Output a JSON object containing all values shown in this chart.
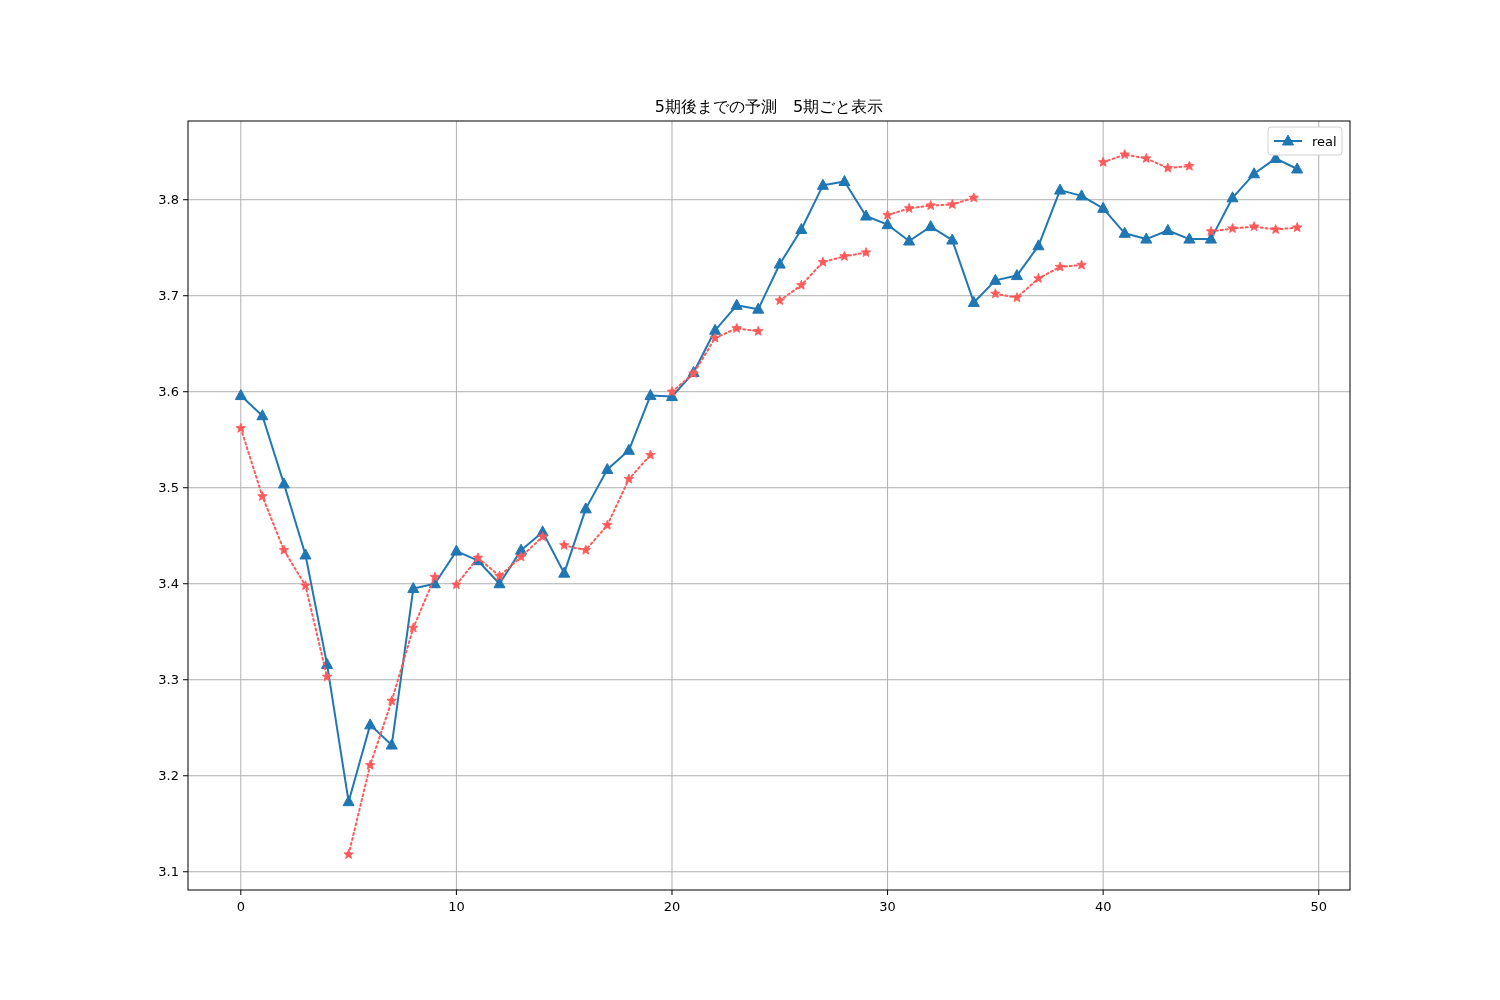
{
  "chart_data": {
    "type": "line",
    "title": "5期後までの予測　5期ごと表示",
    "x": [
      0,
      1,
      2,
      3,
      4,
      5,
      6,
      7,
      8,
      9,
      10,
      11,
      12,
      13,
      14,
      15,
      16,
      17,
      18,
      19,
      20,
      21,
      22,
      23,
      24,
      25,
      26,
      27,
      28,
      29,
      30,
      31,
      32,
      33,
      34,
      35,
      36,
      37,
      38,
      39,
      40,
      41,
      42,
      43,
      44,
      45,
      46,
      47,
      48,
      49
    ],
    "xlim": [
      -2.45,
      51.45
    ],
    "ylim": [
      3.081,
      3.882
    ],
    "xticks": [
      0,
      10,
      20,
      30,
      40,
      50
    ],
    "yticks": [
      3.1,
      3.2,
      3.3,
      3.4,
      3.5,
      3.6,
      3.7,
      3.8
    ],
    "grid": true,
    "legend": "top right",
    "series": [
      {
        "name": "real",
        "color": "#1f77b4",
        "marker": "triangle",
        "line_style": "solid",
        "values": [
          3.596,
          3.575,
          3.504,
          3.43,
          3.316,
          3.173,
          3.253,
          3.232,
          3.395,
          3.4,
          3.434,
          3.424,
          3.4,
          3.435,
          3.454,
          3.411,
          3.478,
          3.519,
          3.539,
          3.596,
          3.595,
          3.62,
          3.664,
          3.69,
          3.686,
          3.733,
          3.769,
          3.815,
          3.819,
          3.783,
          3.774,
          3.757,
          3.772,
          3.758,
          3.693,
          3.716,
          3.721,
          3.752,
          3.81,
          3.804,
          3.791,
          3.765,
          3.759,
          3.768,
          3.759,
          3.759,
          3.802,
          3.827,
          3.843,
          3.832
        ]
      },
      {
        "color": "#ff5a5a",
        "marker": "star",
        "line_style": "dotted",
        "x": [
          0,
          1,
          2,
          3,
          4
        ],
        "values": [
          3.562,
          3.491,
          3.435,
          3.398,
          3.303
        ]
      },
      {
        "color": "#ff5a5a",
        "marker": "star",
        "line_style": "dotted",
        "x": [
          5,
          6,
          7,
          8,
          9
        ],
        "values": [
          3.118,
          3.211,
          3.278,
          3.354,
          3.407
        ]
      },
      {
        "color": "#ff5a5a",
        "marker": "star",
        "line_style": "dotted",
        "x": [
          10,
          11,
          12,
          13,
          14
        ],
        "values": [
          3.399,
          3.427,
          3.408,
          3.428,
          3.449
        ]
      },
      {
        "color": "#ff5a5a",
        "marker": "star",
        "line_style": "dotted",
        "x": [
          15,
          16,
          17,
          18,
          19
        ],
        "values": [
          3.44,
          3.435,
          3.461,
          3.509,
          3.534
        ]
      },
      {
        "color": "#ff5a5a",
        "marker": "star",
        "line_style": "dotted",
        "x": [
          20,
          21,
          22,
          23,
          24
        ],
        "values": [
          3.6,
          3.619,
          3.656,
          3.666,
          3.663
        ]
      },
      {
        "color": "#ff5a5a",
        "marker": "star",
        "line_style": "dotted",
        "x": [
          25,
          26,
          27,
          28,
          29
        ],
        "values": [
          3.695,
          3.711,
          3.735,
          3.741,
          3.745
        ]
      },
      {
        "color": "#ff5a5a",
        "marker": "star",
        "line_style": "dotted",
        "x": [
          30,
          31,
          32,
          33,
          34
        ],
        "values": [
          3.784,
          3.791,
          3.794,
          3.795,
          3.802
        ]
      },
      {
        "color": "#ff5a5a",
        "marker": "star",
        "line_style": "dotted",
        "x": [
          35,
          36,
          37,
          38,
          39
        ],
        "values": [
          3.702,
          3.698,
          3.718,
          3.73,
          3.732
        ]
      },
      {
        "color": "#ff5a5a",
        "marker": "star",
        "line_style": "dotted",
        "x": [
          40,
          41,
          42,
          43,
          44
        ],
        "values": [
          3.839,
          3.847,
          3.843,
          3.833,
          3.835
        ]
      },
      {
        "color": "#ff5a5a",
        "marker": "star",
        "line_style": "dotted",
        "x": [
          45,
          46,
          47,
          48,
          49
        ],
        "values": [
          3.767,
          3.77,
          3.772,
          3.769,
          3.771
        ]
      }
    ]
  }
}
